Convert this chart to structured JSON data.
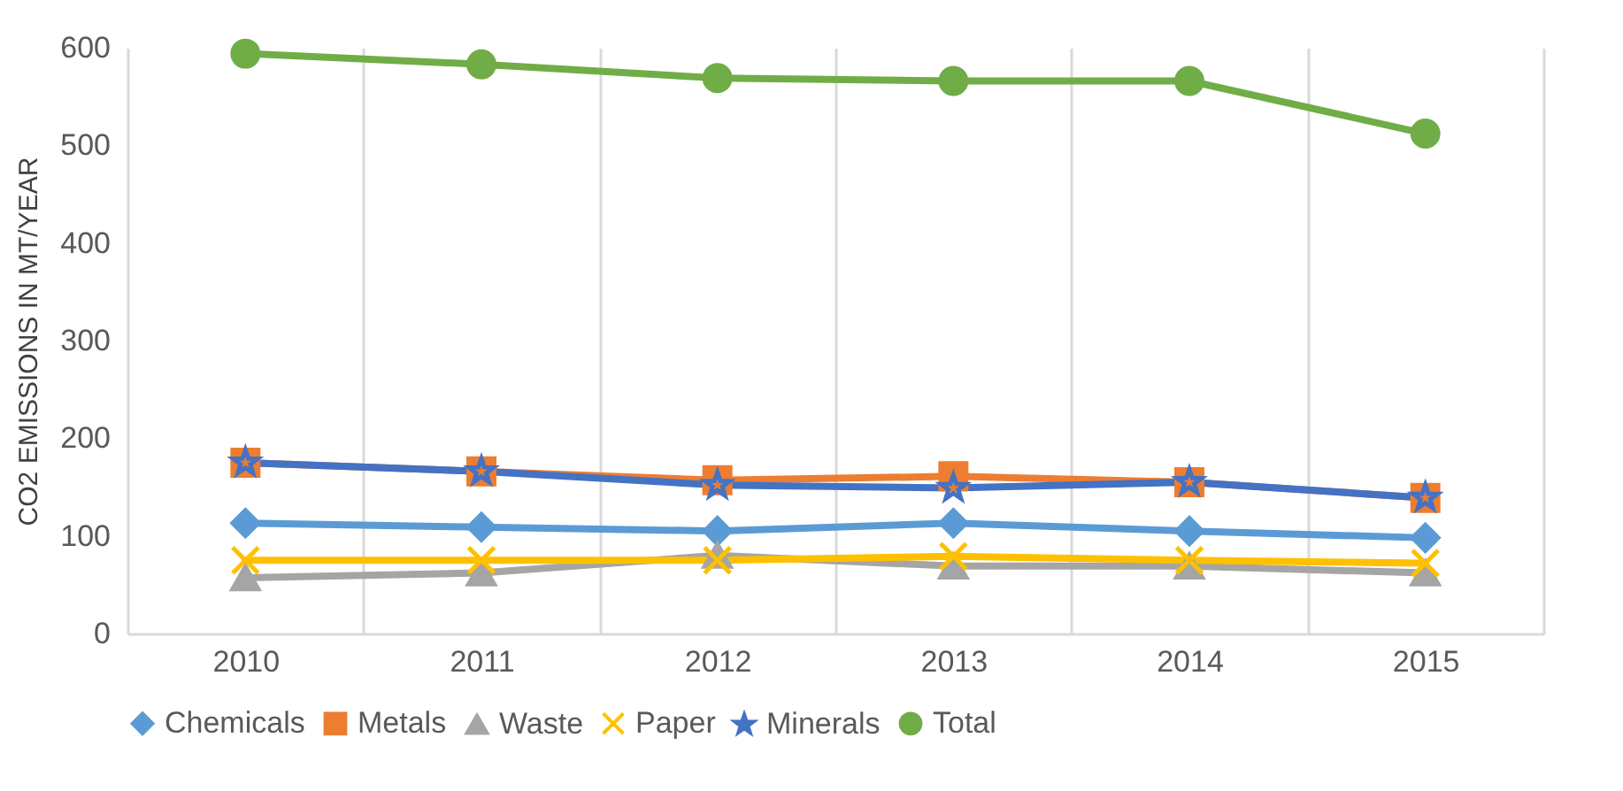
{
  "chart_data": {
    "type": "line",
    "ylabel": "CO2 EMISSIONS IN MT/YEAR",
    "categories": [
      "2010",
      "2011",
      "2012",
      "2013",
      "2014",
      "2015"
    ],
    "series": [
      {
        "name": "Chemicals",
        "color": "#5b9bd5",
        "marker": "diamond",
        "values": [
          113,
          109,
          105,
          113,
          105,
          98
        ]
      },
      {
        "name": "Metals",
        "color": "#ed7d31",
        "marker": "square",
        "values": [
          175,
          166,
          157,
          161,
          155,
          139
        ]
      },
      {
        "name": "Waste",
        "color": "#a5a5a5",
        "marker": "triangle",
        "values": [
          57,
          62,
          80,
          69,
          69,
          62
        ]
      },
      {
        "name": "Paper",
        "color": "#ffc000",
        "marker": "cross",
        "values": [
          75,
          75,
          75,
          79,
          75,
          72
        ]
      },
      {
        "name": "Minerals",
        "color": "#4472c4",
        "marker": "star",
        "values": [
          175,
          166,
          152,
          149,
          155,
          139
        ]
      },
      {
        "name": "Total",
        "color": "#70ad47",
        "marker": "circle",
        "values": [
          594,
          583,
          569,
          566,
          566,
          512
        ]
      }
    ],
    "ylim": [
      0,
      600
    ],
    "yticks": [
      0,
      100,
      200,
      300,
      400,
      500,
      600
    ],
    "grid": "x",
    "legend": "bottom"
  }
}
